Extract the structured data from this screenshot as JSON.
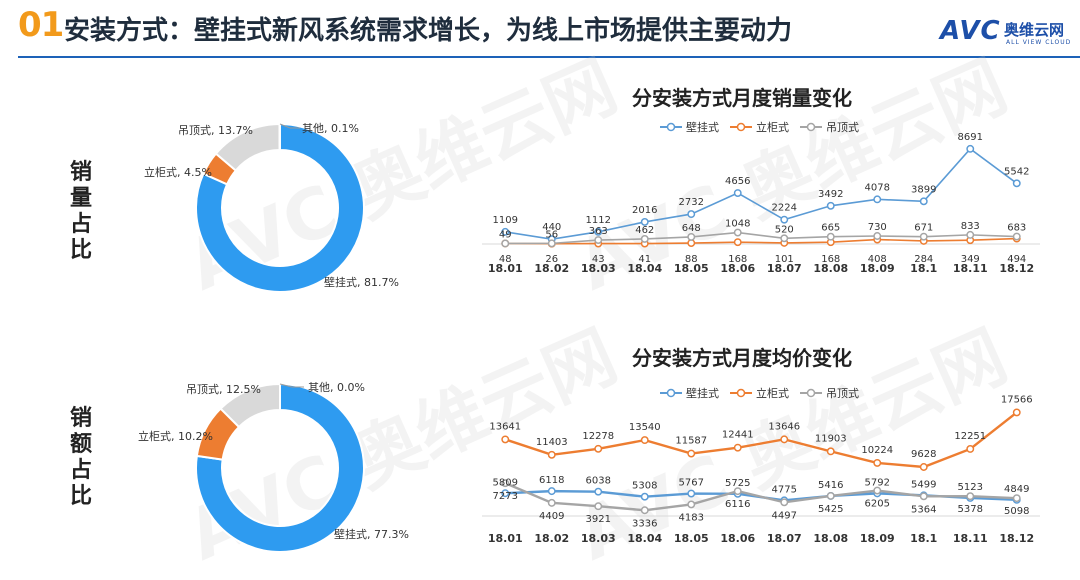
{
  "header": {
    "number": "01",
    "title": "安装方式：壁挂式新风系统需求增长，为线上市场提供主要动力",
    "logo_text": "AVC",
    "logo_cn": "奥维云网",
    "logo_en": "ALL VIEW CLOUD"
  },
  "side_labels": {
    "volume": [
      "销",
      "量",
      "占",
      "比"
    ],
    "amount": [
      "销",
      "额",
      "占",
      "比"
    ]
  },
  "colors": {
    "wall": "#2e9bf0",
    "cabinet": "#ed7d31",
    "ceiling": "#d9d9d9",
    "other": "#7f7f7f",
    "line_wall": "#5b9bd5",
    "line_cabinet": "#ed7d31",
    "line_ceiling": "#a5a5a5"
  },
  "chart_data": [
    {
      "type": "pie",
      "variant": "donut",
      "slices": [
        {
          "label": "壁挂式",
          "value": 81.7,
          "text": "壁挂式, 81.7%"
        },
        {
          "label": "立柜式",
          "value": 4.5,
          "text": "立柜式, 4.5%"
        },
        {
          "label": "吊顶式",
          "value": 13.7,
          "text": "吊顶式, 13.7%"
        },
        {
          "label": "其他",
          "value": 0.1,
          "text": "其他, 0.1%"
        }
      ]
    },
    {
      "type": "pie",
      "variant": "donut",
      "slices": [
        {
          "label": "壁挂式",
          "value": 77.3,
          "text": "壁挂式, 77.3%"
        },
        {
          "label": "立柜式",
          "value": 10.2,
          "text": "立柜式, 10.2%"
        },
        {
          "label": "吊顶式",
          "value": 12.5,
          "text": "吊顶式, 12.5%"
        },
        {
          "label": "其他",
          "value": 0.0,
          "text": "其他, 0.0%"
        }
      ]
    },
    {
      "type": "line",
      "title": "分安装方式月度销量变化",
      "legend": "top",
      "categories": [
        "18.01",
        "18.02",
        "18.03",
        "18.04",
        "18.05",
        "18.06",
        "18.07",
        "18.08",
        "18.09",
        "18.1",
        "18.11",
        "18.12"
      ],
      "ylim": [
        0,
        9500
      ],
      "series": [
        {
          "name": "壁挂式",
          "values": [
            1109,
            440,
            1112,
            2016,
            2732,
            4656,
            2224,
            3492,
            4078,
            3899,
            8691,
            5542
          ]
        },
        {
          "name": "立柜式",
          "values": [
            48,
            26,
            43,
            41,
            88,
            168,
            101,
            168,
            408,
            284,
            349,
            494
          ]
        },
        {
          "name": "吊顶式",
          "values": [
            49,
            56,
            363,
            462,
            648,
            1048,
            520,
            665,
            730,
            671,
            833,
            683
          ]
        }
      ]
    },
    {
      "type": "line",
      "title": "分安装方式月度均价变化",
      "legend": "top",
      "categories": [
        "18.01",
        "18.02",
        "18.03",
        "18.04",
        "18.05",
        "18.06",
        "18.07",
        "18.08",
        "18.09",
        "18.1",
        "18.11",
        "18.12"
      ],
      "ylim": [
        2500,
        18500
      ],
      "series": [
        {
          "name": "壁挂式",
          "values": [
            5809,
            6118,
            6038,
            5308,
            5767,
            5725,
            4775,
            5416,
            5792,
            5499,
            5123,
            4849
          ]
        },
        {
          "name": "立柜式",
          "values": [
            13641,
            11403,
            12278,
            13540,
            11587,
            12441,
            13646,
            11903,
            10224,
            9628,
            12251,
            17566
          ]
        },
        {
          "name": "吊顶式",
          "values": [
            7273,
            4409,
            3921,
            3336,
            4183,
            6116,
            4497,
            5425,
            6205,
            5364,
            5378,
            5098
          ]
        }
      ]
    }
  ]
}
